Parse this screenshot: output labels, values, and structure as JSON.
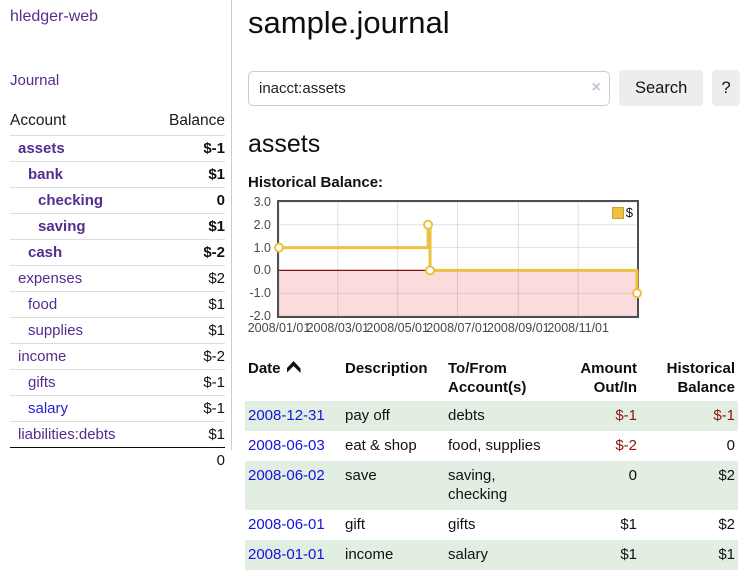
{
  "app": {
    "brand": "hledger-web",
    "nav_journal": "Journal"
  },
  "sidebar": {
    "accounts_header": {
      "account": "Account",
      "balance": "Balance"
    },
    "accounts": [
      {
        "name": "assets",
        "depth": 1,
        "balance": "$-1",
        "bold": true,
        "negative": true
      },
      {
        "name": "bank",
        "depth": 2,
        "balance": "$1",
        "bold": true
      },
      {
        "name": "checking",
        "depth": 3,
        "balance": "0",
        "bold": true
      },
      {
        "name": "saving",
        "depth": 3,
        "balance": "$1",
        "bold": true
      },
      {
        "name": "cash",
        "depth": 2,
        "balance": "$-2",
        "bold": true,
        "negative": true
      },
      {
        "name": "expenses",
        "depth": 1,
        "balance": "$2"
      },
      {
        "name": "food",
        "depth": 2,
        "balance": "$1"
      },
      {
        "name": "supplies",
        "depth": 2,
        "balance": "$1"
      },
      {
        "name": "income",
        "depth": 1,
        "balance": "$-2",
        "negative_light": true
      },
      {
        "name": "gifts",
        "depth": 2,
        "balance": "$-1",
        "negative_light": true
      },
      {
        "name": "salary",
        "depth": 2,
        "balance": "$-1",
        "negative_light": true,
        "blue": true
      },
      {
        "name": "liabilities:debts",
        "depth": 1,
        "balance": "$1"
      }
    ],
    "total": "0"
  },
  "header": {
    "title": "sample.journal"
  },
  "search": {
    "value": "inacct:assets",
    "clear_icon": "×",
    "button_label": "Search",
    "help_label": "?"
  },
  "account_page": {
    "heading": "assets",
    "chart_title": "Historical Balance:"
  },
  "chart_data": {
    "type": "line",
    "style": "step",
    "title": "Historical Balance",
    "series": [
      {
        "name": "$",
        "color": "#edc240",
        "points": [
          [
            "2008-01-01",
            1
          ],
          [
            "2008-06-01",
            2
          ],
          [
            "2008-06-03",
            0
          ],
          [
            "2008-12-31",
            -1
          ]
        ]
      }
    ],
    "x_ticks": [
      "2008/01/01",
      "2008/03/01",
      "2008/05/01",
      "2008/07/01",
      "2008/09/01",
      "2008/11/01"
    ],
    "y_ticks": [
      3.0,
      2.0,
      1.0,
      0.0,
      -1.0,
      -2.0
    ],
    "xlim": [
      "2008-01-01",
      "2008-12-31"
    ],
    "ylim": [
      -2,
      3
    ],
    "grid": true,
    "legend": {
      "label": "$",
      "position": "top-right"
    },
    "negative_region_color": "#fbdbdb",
    "zero_line_color": "#871111"
  },
  "register": {
    "columns": [
      "Date",
      "Description",
      "To/From Account(s)",
      "Amount Out/In",
      "Historical Balance"
    ],
    "sort_indicator": "ascending",
    "rows": [
      {
        "date": "2008-12-31",
        "description": "pay off",
        "accounts": "debts",
        "amount": "$-1",
        "amount_negative": true,
        "balance": "$-1",
        "balance_negative": true
      },
      {
        "date": "2008-06-03",
        "description": "eat & shop",
        "accounts": "food, supplies",
        "amount": "$-2",
        "amount_negative": true,
        "balance": "0"
      },
      {
        "date": "2008-06-02",
        "description": "save",
        "accounts": "saving, checking",
        "amount": "0",
        "balance": "$2"
      },
      {
        "date": "2008-06-01",
        "description": "gift",
        "accounts": "gifts",
        "amount": "$1",
        "balance": "$2"
      },
      {
        "date": "2008-01-01",
        "description": "income",
        "accounts": "salary",
        "amount": "$1",
        "balance": "$1"
      }
    ]
  }
}
